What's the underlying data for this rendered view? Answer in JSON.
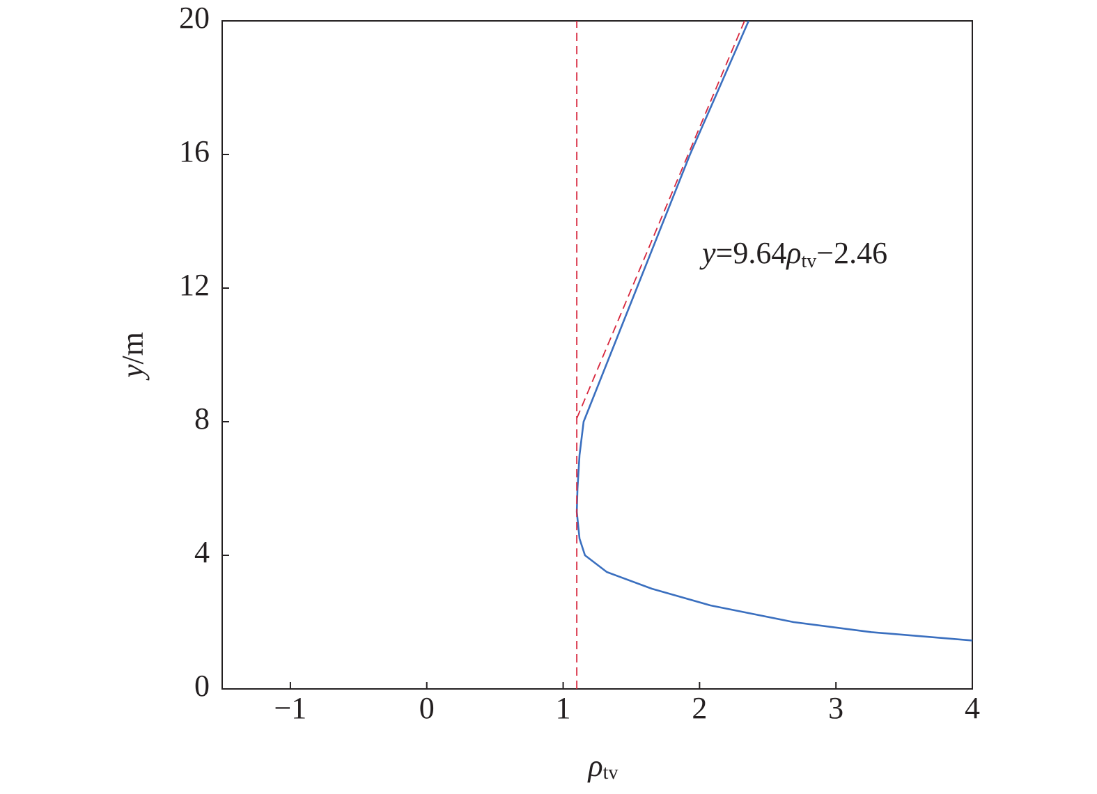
{
  "chart_data": {
    "type": "line",
    "x_label": [
      "ρ",
      "tv"
    ],
    "y_label": [
      "y",
      "/m"
    ],
    "annotation": [
      "y",
      "=9.64",
      "ρ",
      "tv",
      "−2.46"
    ],
    "xlim": [
      -1.5,
      4
    ],
    "ylim": [
      0,
      20
    ],
    "xticks": [
      {
        "value": -1,
        "label": "−1"
      },
      0,
      1,
      2,
      3,
      4
    ],
    "yticks": [
      0,
      4,
      8,
      12,
      16,
      20
    ],
    "series": [
      {
        "color": "#3a6fbf",
        "style": "solid",
        "x": [
          2.36,
          1.93,
          1.54,
          1.15,
          1.12,
          1.105,
          1.1,
          1.12,
          1.16,
          1.32,
          1.65,
          2.08,
          2.69,
          3.26,
          4.0
        ],
        "values": [
          20,
          16,
          12,
          8,
          7,
          6,
          5.3,
          4.5,
          4,
          3.5,
          3,
          2.5,
          2,
          1.7,
          1.45
        ]
      },
      {
        "color": "#d7263d",
        "style": "dashed",
        "x": [
          1.1,
          2.33
        ],
        "values": [
          8.1,
          20
        ]
      },
      {
        "color": "#d7263d",
        "style": "dashed",
        "x": [
          1.1,
          1.1
        ],
        "values": [
          0,
          20
        ]
      }
    ]
  }
}
